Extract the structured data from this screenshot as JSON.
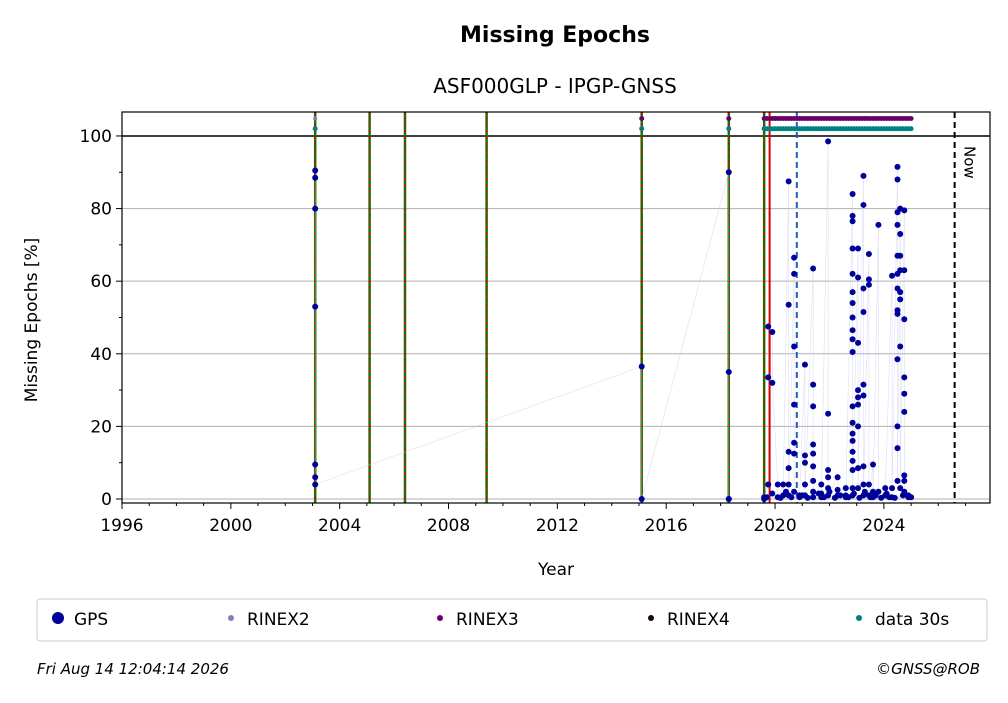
{
  "chart_data": {
    "type": "scatter",
    "title": "Missing Epochs",
    "subtitle": "ASF000GLP - IPGP-GNSS",
    "x_label": "Year",
    "y_label": "Missing Epochs [%]",
    "xlim": [
      1996,
      2027.9
    ],
    "ylim": [
      -1.1,
      106.6
    ],
    "xticks": [
      1996,
      2000,
      2004,
      2008,
      2012,
      2016,
      2020,
      2024
    ],
    "yticks": [
      0,
      20,
      40,
      60,
      80,
      100
    ],
    "xminorticks": [
      1997,
      1998,
      1999,
      2001,
      2002,
      2003,
      2005,
      2006,
      2007,
      2009,
      2010,
      2011,
      2013,
      2014,
      2015,
      2017,
      2018,
      2019,
      2021,
      2022,
      2023,
      2025,
      2026,
      2027
    ],
    "yminorticks": [
      10,
      30,
      50,
      70,
      90
    ],
    "grid": true,
    "hlines": [
      100
    ],
    "vlines": [
      {
        "x": 2003.1,
        "color": "#008000",
        "style": "green-red"
      },
      {
        "x": 2005.1,
        "color": "#008000",
        "style": "green-red"
      },
      {
        "x": 2006.4,
        "color": "#008000",
        "style": "green-red"
      },
      {
        "x": 2009.4,
        "color": "#008000",
        "style": "green-red"
      },
      {
        "x": 2015.1,
        "color": "#008000",
        "style": "green-red"
      },
      {
        "x": 2018.3,
        "color": "#008000",
        "style": "green-red"
      },
      {
        "x": 2019.6,
        "color": "#008000",
        "style": "green-red"
      },
      {
        "x": 2019.8,
        "color": "#dd0000",
        "style": "solid"
      },
      {
        "x": 2020.8,
        "color": "#1f5fbf",
        "style": "dashed"
      },
      {
        "x": 2026.6,
        "color": "#000000",
        "style": "dashed",
        "label": "Now"
      }
    ],
    "series": [
      {
        "name": "GPS",
        "color": "#00009a",
        "size": 3,
        "x": [
          2003.1,
          2003.1,
          2003.1,
          2003.1,
          2003.1,
          2003.1,
          2003.1,
          2015.1,
          2015.1,
          2018.3,
          2018.3,
          2018.3,
          2018.3,
          2019.6,
          2019.6,
          2019.75,
          2019.75,
          2019.75,
          2019.9,
          2019.9,
          2020.1,
          2020.1,
          2020.3,
          2020.3,
          2020.5,
          2020.5,
          2020.5,
          2020.5,
          2020.5,
          2020.5,
          2020.7,
          2020.7,
          2020.7,
          2020.7,
          2020.7,
          2020.7,
          2020.7,
          2020.9,
          2020.9,
          2021.1,
          2021.1,
          2021.1,
          2021.1,
          2021.1,
          2021.4,
          2021.4,
          2021.4,
          2021.4,
          2021.4,
          2021.4,
          2021.4,
          2021.4,
          2021.4,
          2021.7,
          2021.7,
          2021.7,
          2021.95,
          2021.95,
          2021.95,
          2021.95,
          2021.95,
          2021.95,
          2022.3,
          2022.3,
          2022.3,
          2022.6,
          2022.6,
          2022.6,
          2022.85,
          2022.85,
          2022.85,
          2022.85,
          2022.85,
          2022.85,
          2022.85,
          2022.85,
          2022.85,
          2022.85,
          2022.85,
          2022.85,
          2022.85,
          2022.85,
          2022.85,
          2022.85,
          2022.85,
          2022.85,
          2022.85,
          2022.85,
          2023.05,
          2023.05,
          2023.05,
          2023.05,
          2023.05,
          2023.05,
          2023.05,
          2023.05,
          2023.05,
          2023.25,
          2023.25,
          2023.25,
          2023.25,
          2023.25,
          2023.25,
          2023.25,
          2023.25,
          2023.25,
          2023.45,
          2023.45,
          2023.45,
          2023.45,
          2023.45,
          2023.6,
          2023.6,
          2023.6,
          2023.8,
          2023.8,
          2024.05,
          2024.05,
          2024.3,
          2024.3,
          2024.3,
          2024.5,
          2024.5,
          2024.5,
          2024.5,
          2024.5,
          2024.5,
          2024.5,
          2024.5,
          2024.5,
          2024.5,
          2024.5,
          2024.5,
          2024.5,
          2024.6,
          2024.6,
          2024.6,
          2024.6,
          2024.6,
          2024.6,
          2024.6,
          2024.6,
          2024.75,
          2024.75,
          2024.75,
          2024.75,
          2024.75,
          2024.75,
          2024.75,
          2024.75,
          2024.75,
          2024.9,
          2024.9,
          2019.7,
          2019.9,
          2020.2,
          2020.4,
          2020.6,
          2021.0,
          2021.2,
          2021.6,
          2021.8,
          2022.0,
          2022.2,
          2022.4,
          2022.7,
          2022.9,
          2023.1,
          2023.3,
          2023.5,
          2023.7,
          2023.9,
          2024.1,
          2024.2,
          2024.4,
          2024.7,
          2025.0
        ],
        "values": [
          90.5,
          88.5,
          80,
          53,
          9.5,
          6,
          4,
          36.5,
          0,
          90,
          35,
          0,
          0,
          0,
          0.5,
          4,
          33.5,
          47.5,
          46,
          32,
          4,
          0.5,
          4,
          1,
          87.5,
          53.5,
          13,
          8.5,
          4,
          1,
          62,
          66.5,
          42,
          26,
          15.5,
          12.5,
          2,
          1,
          0.5,
          37,
          10,
          4,
          12,
          1,
          63.5,
          31.5,
          25.5,
          15,
          12.5,
          9,
          5,
          2,
          0.5,
          4,
          1.5,
          0.5,
          98.5,
          23.5,
          8,
          6,
          3,
          1,
          6,
          2.5,
          1,
          3,
          1,
          0.5,
          84,
          78,
          76.5,
          69,
          62,
          57,
          54,
          50,
          46.5,
          44,
          40.5,
          25.5,
          21,
          18,
          16,
          13,
          10.5,
          8,
          3,
          1,
          69,
          61,
          43,
          30,
          28,
          26,
          20,
          8.5,
          3,
          89,
          81,
          58,
          51.5,
          31.5,
          28.5,
          9,
          4,
          1,
          67.5,
          60.5,
          59,
          4,
          1,
          9.5,
          2,
          0.5,
          75.5,
          2,
          3,
          1,
          61.5,
          3,
          0.5,
          91.5,
          88,
          79,
          75.5,
          67,
          62,
          58,
          52,
          51,
          38.5,
          20,
          14,
          5,
          80,
          73,
          67,
          63,
          57,
          55,
          42,
          3,
          79.5,
          63,
          49.5,
          33.5,
          29,
          24,
          6.5,
          5,
          2,
          1,
          0.5,
          0.5,
          1.5,
          0.3,
          2,
          0.5,
          1,
          0.3,
          1.5,
          0.5,
          2,
          0.3,
          1,
          0.5,
          1.5,
          0.3,
          2,
          0.5,
          1,
          0.3,
          1.5,
          0.5,
          0.3,
          1,
          0.5
        ]
      },
      {
        "name": "RINEX2",
        "color": "#8080c0",
        "size": 2,
        "x": [
          2003.1
        ],
        "values": [
          104.8
        ]
      },
      {
        "name": "RINEX3",
        "color": "#6a006a",
        "size": 2.5,
        "x": [
          2015.1,
          2018.3,
          2019.6,
          2019.7,
          2019.8,
          2019.9,
          2020.0,
          2020.1,
          2020.2,
          2020.3,
          2020.4,
          2020.5,
          2020.6,
          2020.7,
          2020.8,
          2020.9,
          2021.0,
          2021.1,
          2021.2,
          2021.3,
          2021.4,
          2021.5,
          2021.6,
          2021.7,
          2021.8,
          2021.9,
          2022.0,
          2022.1,
          2022.2,
          2022.3,
          2022.4,
          2022.5,
          2022.6,
          2022.7,
          2022.8,
          2022.9,
          2023.0,
          2023.1,
          2023.2,
          2023.3,
          2023.4,
          2023.5,
          2023.6,
          2023.7,
          2023.8,
          2023.9,
          2024.0,
          2024.1,
          2024.2,
          2024.3,
          2024.4,
          2024.5,
          2024.6,
          2024.7,
          2024.8,
          2024.9,
          2025.0
        ],
        "values": [
          104.8,
          104.8,
          104.8,
          104.8,
          104.8,
          104.8,
          104.8,
          104.8,
          104.8,
          104.8,
          104.8,
          104.8,
          104.8,
          104.8,
          104.8,
          104.8,
          104.8,
          104.8,
          104.8,
          104.8,
          104.8,
          104.8,
          104.8,
          104.8,
          104.8,
          104.8,
          104.8,
          104.8,
          104.8,
          104.8,
          104.8,
          104.8,
          104.8,
          104.8,
          104.8,
          104.8,
          104.8,
          104.8,
          104.8,
          104.8,
          104.8,
          104.8,
          104.8,
          104.8,
          104.8,
          104.8,
          104.8,
          104.8,
          104.8,
          104.8,
          104.8,
          104.8,
          104.8,
          104.8,
          104.8,
          104.8,
          104.8
        ]
      },
      {
        "name": "RINEX4",
        "color": "#1a0010",
        "size": 2,
        "x": [],
        "values": []
      },
      {
        "name": "data 30s",
        "color": "#008080",
        "size": 2.5,
        "x": [
          2003.1,
          2015.1,
          2018.3,
          2019.6,
          2019.7,
          2019.8,
          2019.9,
          2020.0,
          2020.1,
          2020.2,
          2020.3,
          2020.4,
          2020.5,
          2020.6,
          2020.7,
          2020.8,
          2020.9,
          2021.0,
          2021.1,
          2021.2,
          2021.3,
          2021.4,
          2021.5,
          2021.6,
          2021.7,
          2021.8,
          2021.9,
          2022.0,
          2022.1,
          2022.2,
          2022.3,
          2022.4,
          2022.5,
          2022.6,
          2022.7,
          2022.8,
          2022.9,
          2023.0,
          2023.1,
          2023.2,
          2023.3,
          2023.4,
          2023.5,
          2023.6,
          2023.7,
          2023.8,
          2023.9,
          2024.0,
          2024.1,
          2024.2,
          2024.3,
          2024.4,
          2024.5,
          2024.6,
          2024.7,
          2024.8,
          2024.9,
          2025.0
        ],
        "values": [
          102,
          102,
          102,
          102,
          102,
          102,
          102,
          102,
          102,
          102,
          102,
          102,
          102,
          102,
          102,
          102,
          102,
          102,
          102,
          102,
          102,
          102,
          102,
          102,
          102,
          102,
          102,
          102,
          102,
          102,
          102,
          102,
          102,
          102,
          102,
          102,
          102,
          102,
          102,
          102,
          102,
          102,
          102,
          102,
          102,
          102,
          102,
          102,
          102,
          102,
          102,
          102,
          102,
          102,
          102,
          102,
          102,
          102
        ]
      }
    ],
    "footer_left": "Fri Aug 14 12:04:14 2026",
    "footer_right": "©GNSS@ROB"
  }
}
